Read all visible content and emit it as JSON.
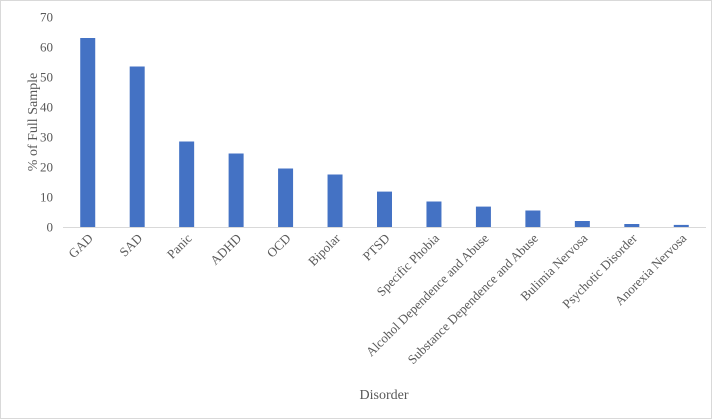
{
  "chart_data": {
    "type": "bar",
    "title": "",
    "xlabel": "Disorder",
    "ylabel": "% of Full Sample",
    "ylim": [
      0,
      70
    ],
    "yticks": [
      "0",
      "10",
      "20",
      "30",
      "40",
      "50",
      "60",
      "70"
    ],
    "grid": false,
    "legend": "none",
    "bar_color": "#4472C4",
    "categories": [
      "GAD",
      "SAD",
      "Panic",
      "ADHD",
      "OCD",
      "Bipolar",
      "PTSD",
      "Specific Phobia",
      "Alcohol Dependence and Abuse",
      "Substance Dependence and Abuse",
      "Bulimia Nervosa",
      "Psychotic Disorder",
      "Anorexia Nervosa"
    ],
    "values": [
      63,
      53.5,
      28.5,
      24.5,
      19.5,
      17.5,
      11.8,
      8.5,
      6.8,
      5.5,
      2.0,
      1.0,
      0.7
    ]
  }
}
